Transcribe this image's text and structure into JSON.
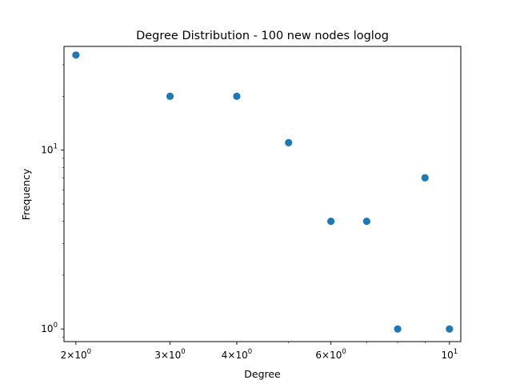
{
  "chart_data": {
    "type": "scatter",
    "title": "Degree Distribution - 100 new nodes loglog",
    "xlabel": "Degree",
    "ylabel": "Frequency",
    "xscale": "log",
    "yscale": "log",
    "xlim": [
      1.9,
      10.5
    ],
    "ylim": [
      0.85,
      38
    ],
    "grid": false,
    "marker_color": "#1f77b4",
    "series": [
      {
        "x": [
          2,
          3,
          4,
          5,
          6,
          7,
          8,
          9,
          10
        ],
        "y": [
          34,
          20,
          20,
          11,
          4,
          4,
          1,
          7,
          1
        ]
      }
    ],
    "x_ticks": [
      {
        "value": 2,
        "mantissa": "2",
        "operator": "×",
        "base": "10",
        "exponent": "0"
      },
      {
        "value": 3,
        "mantissa": "3",
        "operator": "×",
        "base": "10",
        "exponent": "0"
      },
      {
        "value": 4,
        "mantissa": "4",
        "operator": "×",
        "base": "10",
        "exponent": "0"
      },
      {
        "value": 6,
        "mantissa": "6",
        "operator": "×",
        "base": "10",
        "exponent": "0"
      },
      {
        "value": 10,
        "mantissa": "",
        "operator": "",
        "base": "10",
        "exponent": "1"
      }
    ],
    "y_ticks": [
      {
        "value": 1,
        "base": "10",
        "exponent": "0"
      },
      {
        "value": 10,
        "base": "10",
        "exponent": "1"
      }
    ],
    "y_minor_ticks": [
      0.9,
      2,
      3,
      4,
      5,
      6,
      7,
      8,
      9,
      20,
      30
    ],
    "x_minor_ticks": [
      5,
      7,
      8,
      9
    ]
  }
}
